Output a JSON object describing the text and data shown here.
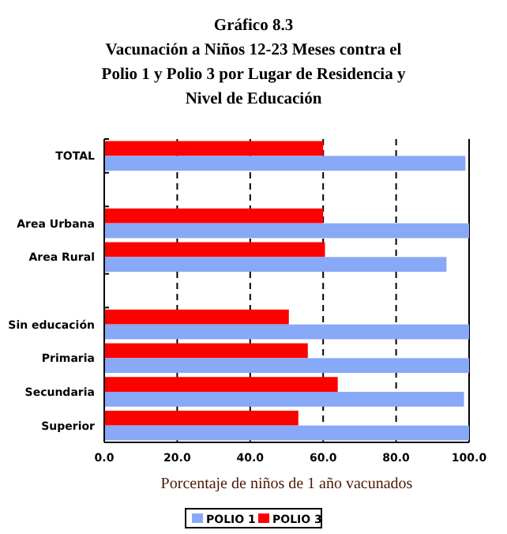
{
  "chart_data": {
    "type": "bar",
    "orientation": "horizontal",
    "title": "Gráfico 8.3\nVacunación a Niños 12-23 Meses contra el\nPolio 1 y Polio 3 por Lugar de Residencia y\nNivel de Educación",
    "xlabel": "Porcentaje de niños de 1 año vacunados",
    "categories": [
      "TOTAL",
      null,
      "Area Urbana",
      "Area Rural",
      null,
      "Sin educación",
      "Primaria",
      "Secundaria",
      "Superior"
    ],
    "series": [
      {
        "name": "POLIO 3",
        "color": "#ff0000",
        "values": [
          60,
          null,
          60,
          60.5,
          null,
          50.6,
          55.8,
          64,
          53.2
        ]
      },
      {
        "name": "POLIO 1",
        "color": "#88a8f8",
        "values": [
          99,
          null,
          100,
          93.8,
          null,
          100,
          100,
          98.6,
          100
        ]
      }
    ],
    "xlim": [
      0,
      100
    ],
    "xticks": [
      {
        "value": 0,
        "label": "0.0"
      },
      {
        "value": 20,
        "label": "20.0"
      },
      {
        "value": 40,
        "label": "40.0"
      },
      {
        "value": 60,
        "label": "60.0"
      },
      {
        "value": 80,
        "label": "80.0"
      },
      {
        "value": 100,
        "label": "100.0"
      }
    ],
    "grid": "x",
    "legend": "bottom"
  }
}
